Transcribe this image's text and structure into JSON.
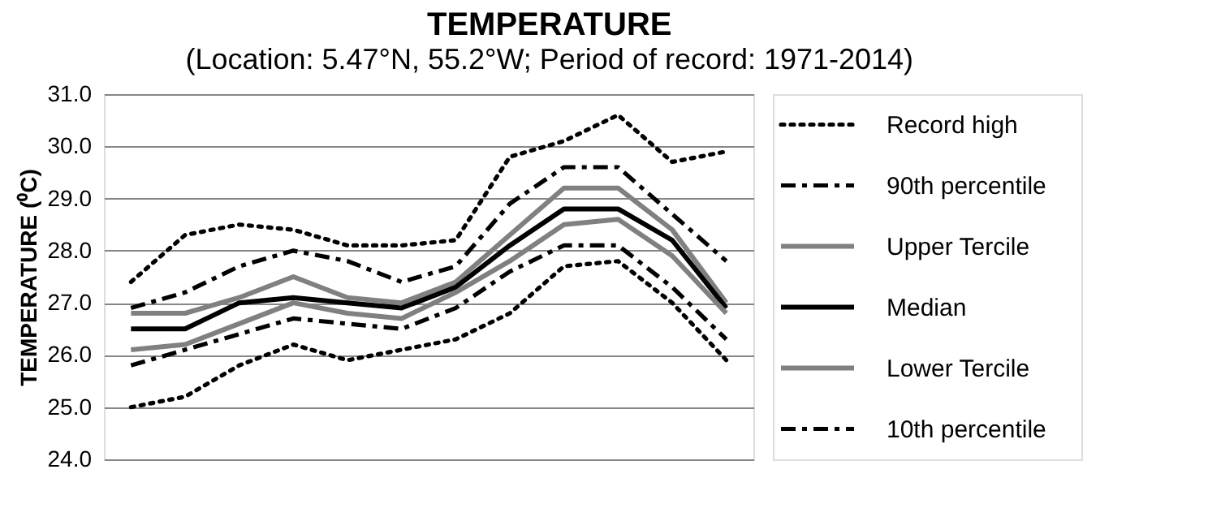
{
  "chart_data": {
    "type": "line",
    "title": "TEMPERATURE",
    "subtitle": "(Location: 5.47°N, 55.2°W; Period of record: 1971-2014)",
    "ylabel": "TEMPERATURE (⁰C)",
    "categories": [
      null,
      null,
      null,
      null,
      null,
      null,
      null,
      null,
      null,
      null,
      null,
      null
    ],
    "ylim": [
      24.0,
      31.0
    ],
    "yticks": [
      {
        "value": 24,
        "label": "24.0"
      },
      {
        "value": 25,
        "label": "25.0"
      },
      {
        "value": 26,
        "label": "26.0"
      },
      {
        "value": 27,
        "label": "27.0"
      },
      {
        "value": 28,
        "label": "28.0"
      },
      {
        "value": 29,
        "label": "29.0"
      },
      {
        "value": 30,
        "label": "30.0"
      },
      {
        "value": 31,
        "label": "31.0"
      }
    ],
    "grid": "y",
    "legend": "right",
    "tick_labels": "y",
    "series": [
      {
        "name": "Record high",
        "color": "#000000",
        "line_style": "dotted",
        "values": [
          27.4,
          28.3,
          28.5,
          28.4,
          28.1,
          28.1,
          28.2,
          29.8,
          30.1,
          30.6,
          29.7,
          29.9
        ]
      },
      {
        "name": "90th percentile",
        "color": "#000000",
        "line_style": "dashed",
        "values": [
          26.9,
          27.2,
          27.7,
          28.0,
          27.8,
          27.4,
          27.7,
          28.9,
          29.6,
          29.6,
          28.7,
          27.8
        ]
      },
      {
        "name": "Upper Tercile",
        "color": "#808080",
        "line_style": "solid",
        "values": [
          26.8,
          26.8,
          27.1,
          27.5,
          27.1,
          27.0,
          27.4,
          28.3,
          29.2,
          29.2,
          28.4,
          27.0
        ]
      },
      {
        "name": "Median",
        "color": "#000000",
        "line_style": "solid",
        "values": [
          26.5,
          26.5,
          27.0,
          27.1,
          27.0,
          26.9,
          27.3,
          28.1,
          28.8,
          28.8,
          28.2,
          26.9
        ]
      },
      {
        "name": "Lower Tercile",
        "color": "#808080",
        "line_style": "solid",
        "values": [
          26.1,
          26.2,
          26.6,
          27.0,
          26.8,
          26.7,
          27.2,
          27.8,
          28.5,
          28.6,
          27.9,
          26.8
        ]
      },
      {
        "name": "10th percentile",
        "color": "#000000",
        "line_style": "dashed",
        "values": [
          25.8,
          26.1,
          26.4,
          26.7,
          26.6,
          26.5,
          26.9,
          27.6,
          28.1,
          28.1,
          27.3,
          26.3
        ]
      },
      {
        "color": "#000000",
        "line_style": "dotted",
        "values": [
          25.0,
          25.2,
          25.8,
          26.2,
          25.9,
          26.1,
          26.3,
          26.8,
          27.7,
          27.8,
          27.0,
          25.9
        ]
      }
    ]
  }
}
